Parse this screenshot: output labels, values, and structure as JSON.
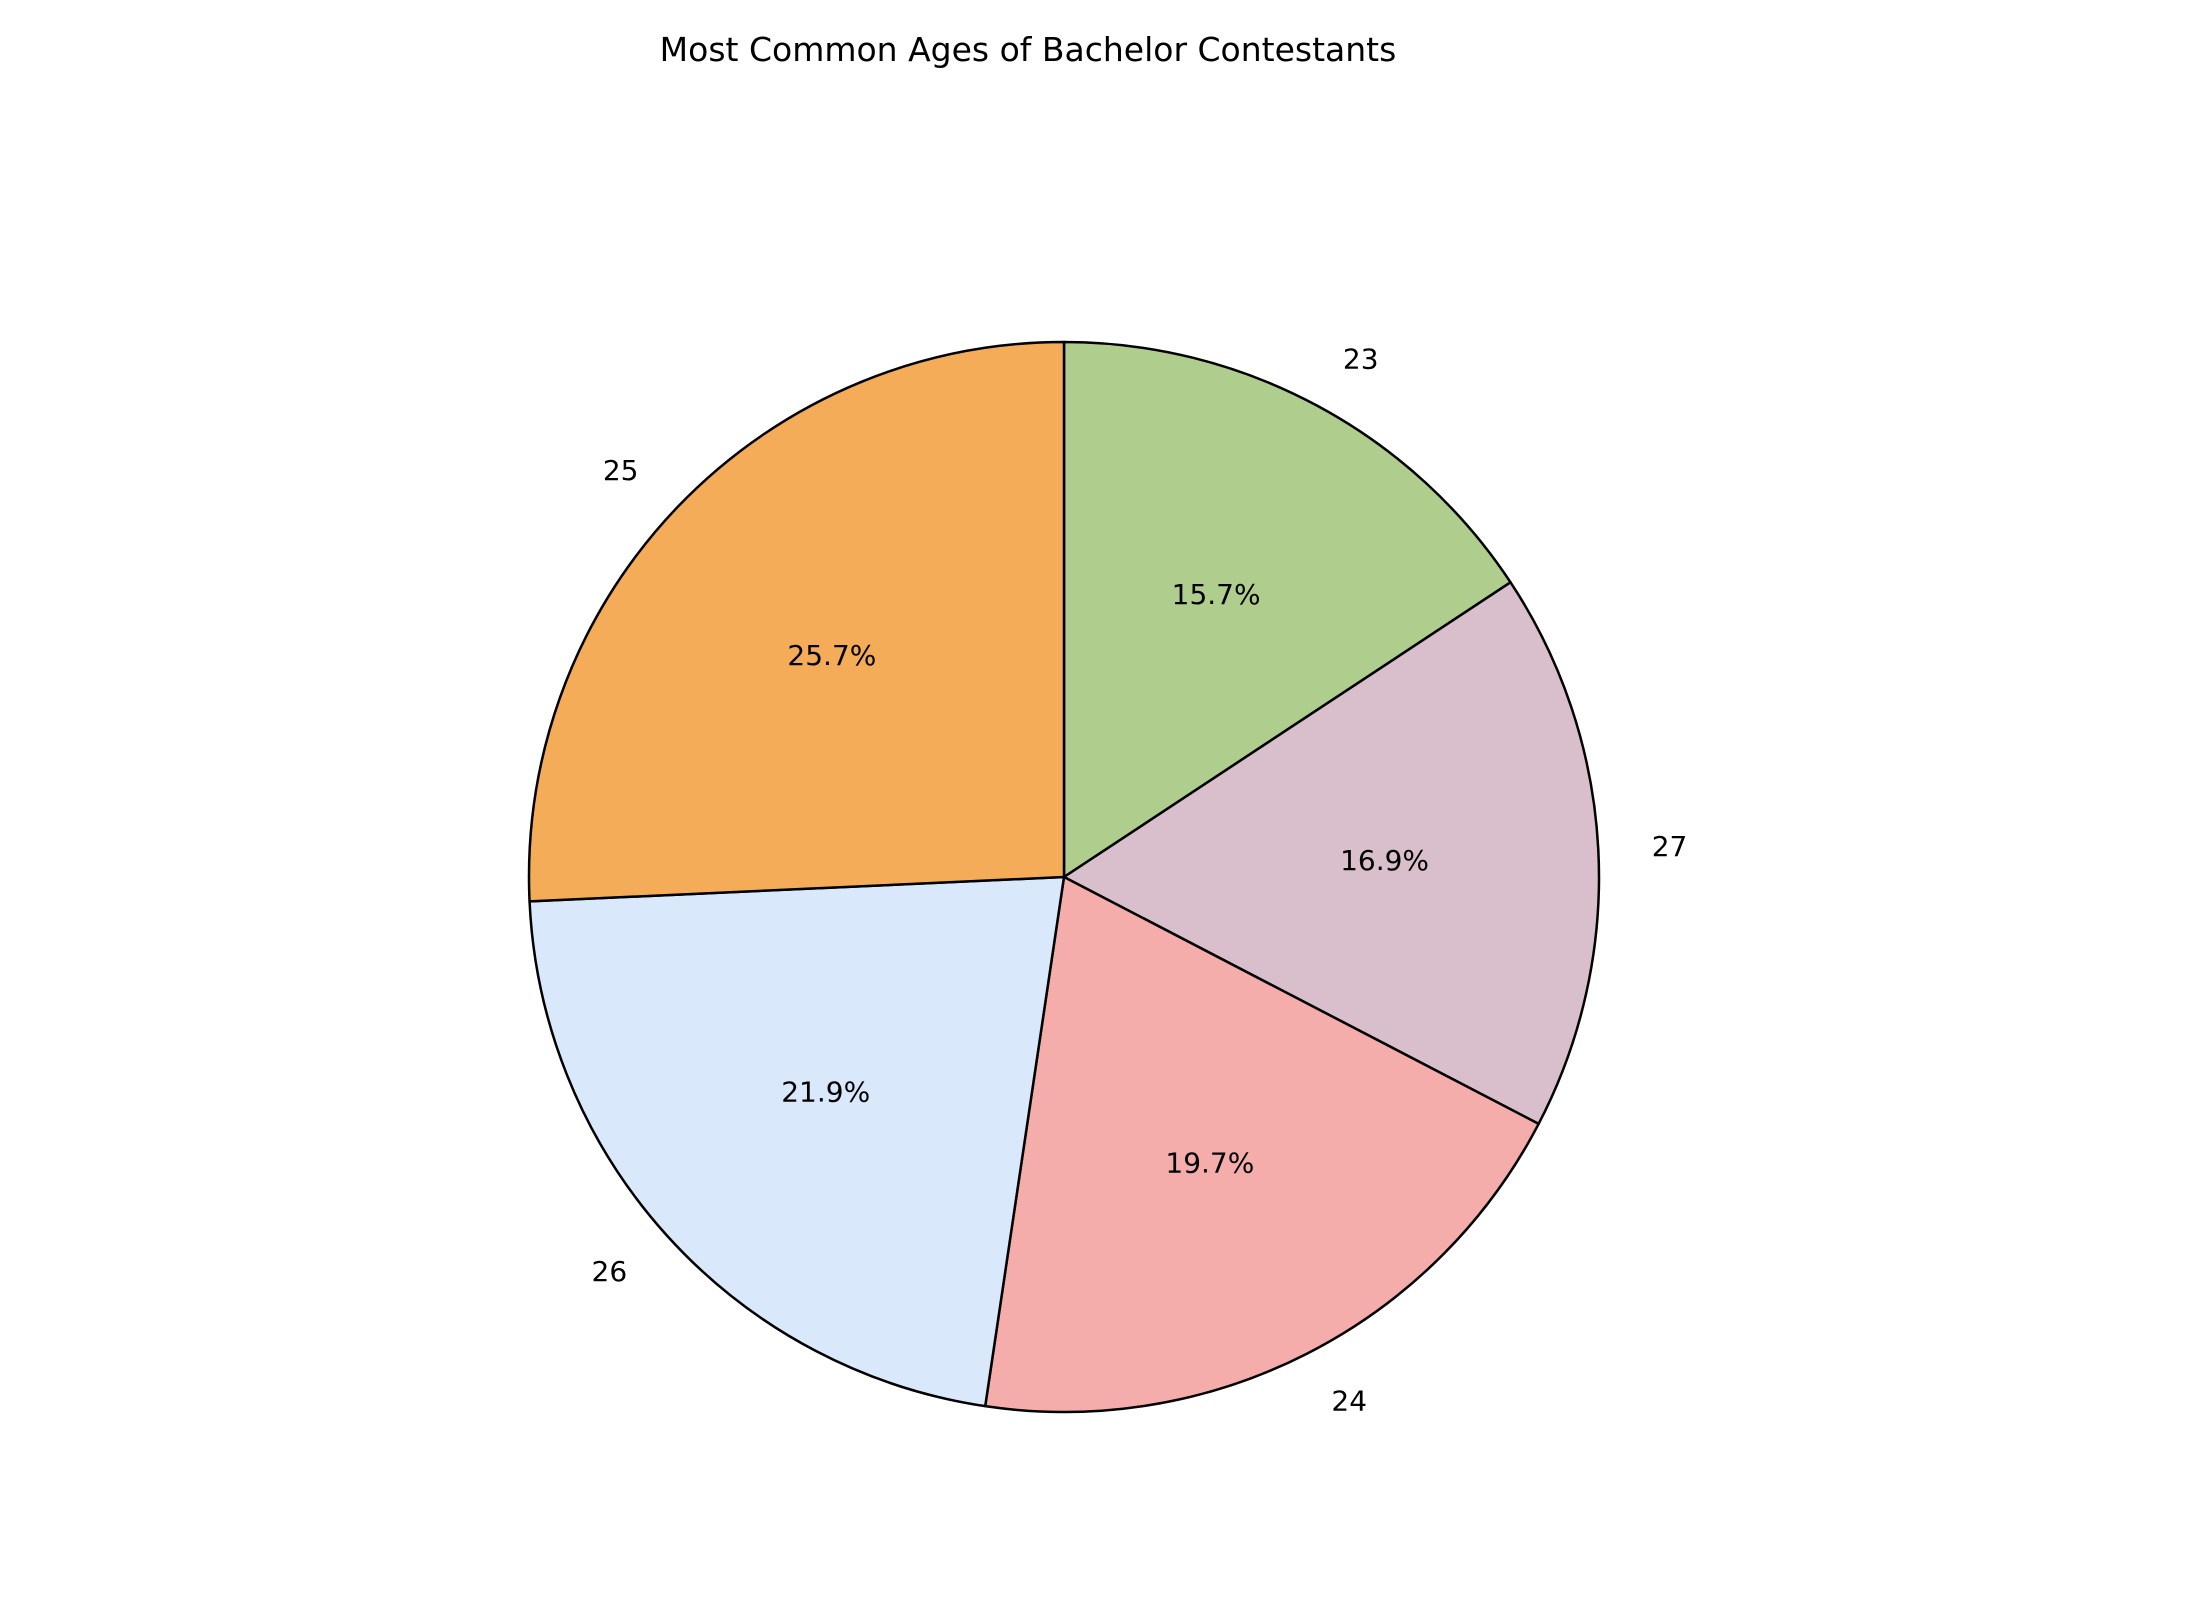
{
  "chart_data": {
    "type": "pie",
    "title": "Most Common Ages of Bachelor Contestants",
    "start_angle_deg": 90,
    "direction": "clockwise",
    "edge_color": "#000000",
    "slices": [
      {
        "label": "23",
        "value": 15.7,
        "pct_label": "15.7%",
        "color": "#AFCE8D"
      },
      {
        "label": "27",
        "value": 16.9,
        "pct_label": "16.9%",
        "color": "#D8BFCB"
      },
      {
        "label": "24",
        "value": 19.7,
        "pct_label": "19.7%",
        "color": "#F4ADAB"
      },
      {
        "label": "26",
        "value": 21.9,
        "pct_label": "21.9%",
        "color": "#DAE8FB"
      },
      {
        "label": "25",
        "value": 25.7,
        "pct_label": "25.7%",
        "color": "#F4AC59"
      }
    ]
  }
}
